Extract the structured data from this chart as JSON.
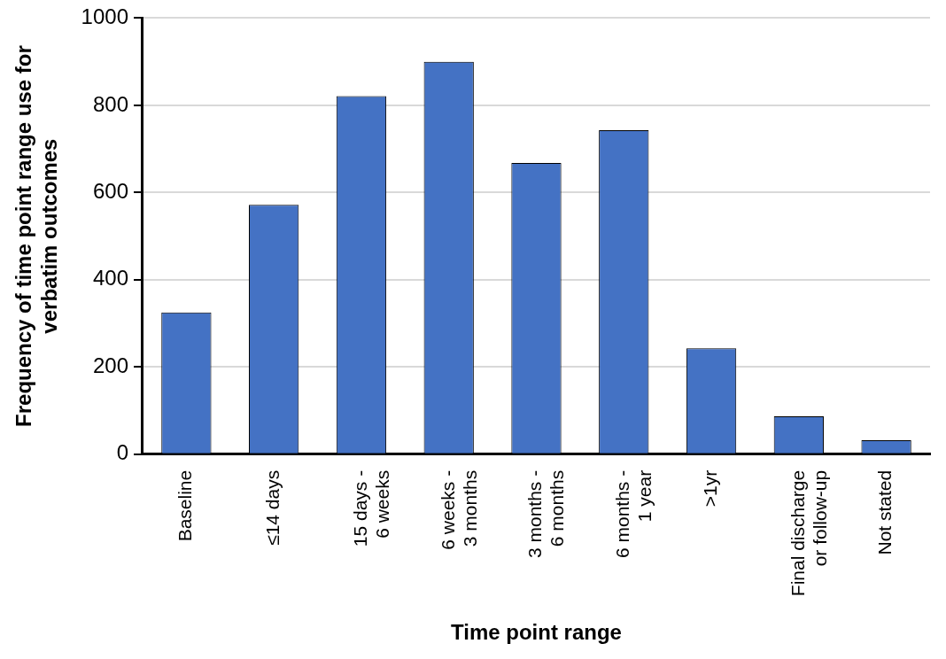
{
  "chart_data": {
    "type": "bar",
    "xlabel": "Time point range",
    "ylabel": "Frequency of time point range use for verbatim outcomes",
    "categories": [
      "Baseline",
      "≤14 days",
      "15 days - 6 weeks",
      "6 weeks - 3 months",
      "3 months - 6 months",
      "6 months - 1 year",
      ">1yr",
      "Final discharge or follow-up",
      "Not stated"
    ],
    "values": [
      325,
      572,
      821,
      900,
      668,
      743,
      243,
      87,
      32
    ],
    "color": "#4472c4",
    "ylim": [
      0,
      1000
    ],
    "yticks": [
      0,
      200,
      400,
      600,
      800,
      1000
    ],
    "grid": "y",
    "legend": false
  }
}
